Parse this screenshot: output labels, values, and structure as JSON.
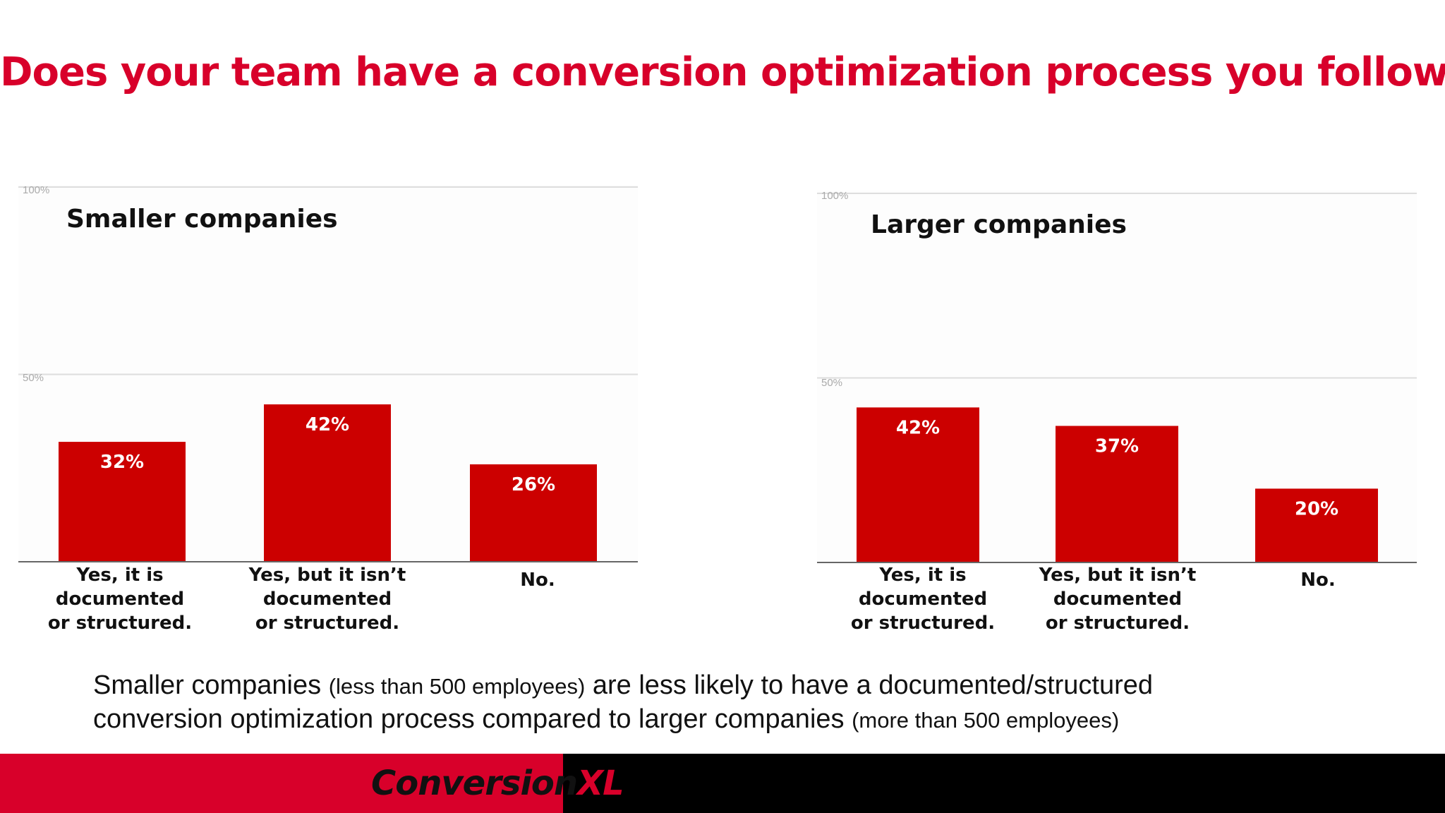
{
  "title": "Does your team have a conversion optimization process you follow?",
  "chart_data": [
    {
      "type": "bar",
      "title": "Smaller companies",
      "categories": [
        [
          "Yes, it is",
          "documented",
          "or structured."
        ],
        [
          "Yes, but it isn’t",
          "documented",
          "or structured."
        ],
        [
          "No."
        ]
      ],
      "values": [
        32,
        42,
        26
      ],
      "value_labels": [
        "32%",
        "42%",
        "26%"
      ],
      "yticks": [
        "100%",
        "50%"
      ],
      "ylim": [
        0,
        100
      ],
      "grid": true,
      "bar_color": "#cc0000"
    },
    {
      "type": "bar",
      "title": "Larger companies",
      "categories": [
        [
          "Yes, it is",
          "documented",
          "or structured."
        ],
        [
          "Yes, but it isn’t",
          "documented",
          "or structured."
        ],
        [
          "No."
        ]
      ],
      "values": [
        42,
        37,
        20
      ],
      "value_labels": [
        "42%",
        "37%",
        "20%"
      ],
      "yticks": [
        "100%",
        "50%"
      ],
      "ylim": [
        0,
        100
      ],
      "grid": true,
      "bar_color": "#cc0000"
    }
  ],
  "caption": {
    "line1_a": "Smaller companies ",
    "line1_b": "(less than 500 employees)",
    "line1_c": " are less likely to have a documented/structured",
    "line2_a": "conversion optimization process compared to larger companies ",
    "line2_b": "(more than 500 employees)"
  },
  "logo": {
    "part1": "Conversion",
    "part2": "XL"
  },
  "colors": {
    "title": "#d8002a",
    "footer_red": "#d8002a",
    "footer_black": "#000000"
  }
}
